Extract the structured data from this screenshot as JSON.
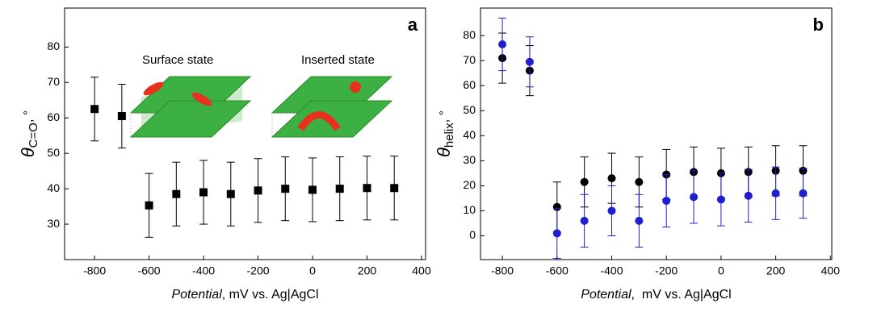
{
  "chart_data": [
    {
      "type": "scatter",
      "panel_label": "a",
      "xlabel": [
        "Potential",
        ", mV vs. Ag|AgCl"
      ],
      "ylabel": [
        "θ",
        "C=O",
        ", °"
      ],
      "annotations": [
        "Surface state",
        "Inserted state"
      ],
      "x": [
        -800,
        -700,
        -600,
        -500,
        -400,
        -300,
        -200,
        -100,
        0,
        100,
        200,
        300
      ],
      "series": [
        {
          "color": "#000000",
          "marker": "square",
          "error_color": "#000000",
          "values": [
            62.5,
            60.5,
            35.3,
            38.5,
            39,
            38.5,
            39.5,
            40,
            39.7,
            40,
            40.2,
            40.2
          ],
          "errors": [
            9,
            9,
            9,
            9,
            9,
            9,
            9,
            9,
            9,
            9,
            9,
            9
          ]
        }
      ],
      "xlim": [
        -910,
        415
      ],
      "xticks": [
        -800,
        -600,
        -400,
        -200,
        0,
        200,
        400
      ],
      "ylim": [
        20,
        91
      ],
      "yticks": [
        30,
        40,
        50,
        60,
        70,
        80
      ]
    },
    {
      "type": "scatter",
      "panel_label": "b",
      "xlabel": [
        "Potential",
        ",  mV vs. Ag|AgCl"
      ],
      "ylabel": [
        "θ",
        "helix",
        ", °"
      ],
      "x": [
        -800,
        -700,
        -600,
        -500,
        -400,
        -300,
        -200,
        -100,
        0,
        100,
        200,
        300
      ],
      "series": [
        {
          "color": "#000000",
          "marker": "circle",
          "error_color": "#000000",
          "values": [
            71,
            66,
            11.5,
            21.5,
            23,
            21.5,
            24.5,
            25.5,
            25,
            25.5,
            26,
            26
          ],
          "errors": [
            10,
            10,
            10,
            10,
            10,
            10,
            10,
            10,
            10,
            10,
            10,
            10
          ]
        },
        {
          "color": "#1f1fd0",
          "marker": "circle",
          "error_color": "#1f1fd0",
          "values": [
            76.5,
            69.5,
            1,
            6,
            10,
            6,
            14,
            15.5,
            14.5,
            16,
            17,
            17
          ],
          "errors": [
            10.5,
            10,
            10,
            10.5,
            10,
            10.5,
            10.5,
            10.5,
            10.5,
            10.5,
            10.5,
            10
          ]
        }
      ],
      "xlim": [
        -880,
        405
      ],
      "xticks": [
        -800,
        -600,
        -400,
        -200,
        0,
        200,
        400
      ],
      "ylim": [
        -9.5,
        91
      ],
      "yticks": [
        0,
        10,
        20,
        30,
        40,
        50,
        60,
        70,
        80
      ]
    }
  ]
}
